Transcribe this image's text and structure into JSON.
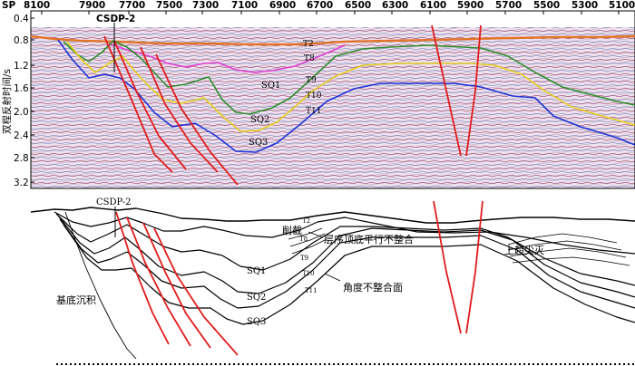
{
  "sp_axis": {
    "prefix": "SP",
    "ticks": [
      "8100",
      "7900",
      "7700",
      "7500",
      "7300",
      "7100",
      "6900",
      "6700",
      "6500",
      "6300",
      "6100",
      "5900",
      "5700",
      "5500",
      "5300",
      "5100"
    ]
  },
  "time_axis": {
    "title": "双程反射时间/s",
    "ticks": [
      "0.4",
      "0.8",
      "1.2",
      "1.6",
      "2.0",
      "2.4",
      "2.8",
      "3.2"
    ]
  },
  "well": "CSDP-2",
  "horizons": [
    {
      "name": "T2",
      "color": "#e2742a"
    },
    {
      "name": "T8",
      "color": "#e23fd0"
    },
    {
      "name": "T9",
      "color": "#2d8c2d"
    },
    {
      "name": "T10",
      "color": "#e6cf18"
    },
    {
      "name": "T11",
      "color": "#1f33d8"
    }
  ],
  "sequences": [
    "SQ1",
    "SQ2",
    "SQ3"
  ],
  "fault_color": "#e21b1b",
  "interpretation": {
    "well": "CSDP-2",
    "horizon_labels": [
      "T2",
      "T8",
      "T9",
      "T10",
      "T11"
    ],
    "sequences": [
      "SQ1",
      "SQ2",
      "SQ3"
    ],
    "notes": {
      "basement": "基底沉积",
      "truncation": "削截",
      "parallel_unconformity": "层序顶底平行不整合",
      "angular_unconformity": "角度不整合面",
      "onlap_pinchout": "上超尖灭"
    }
  }
}
